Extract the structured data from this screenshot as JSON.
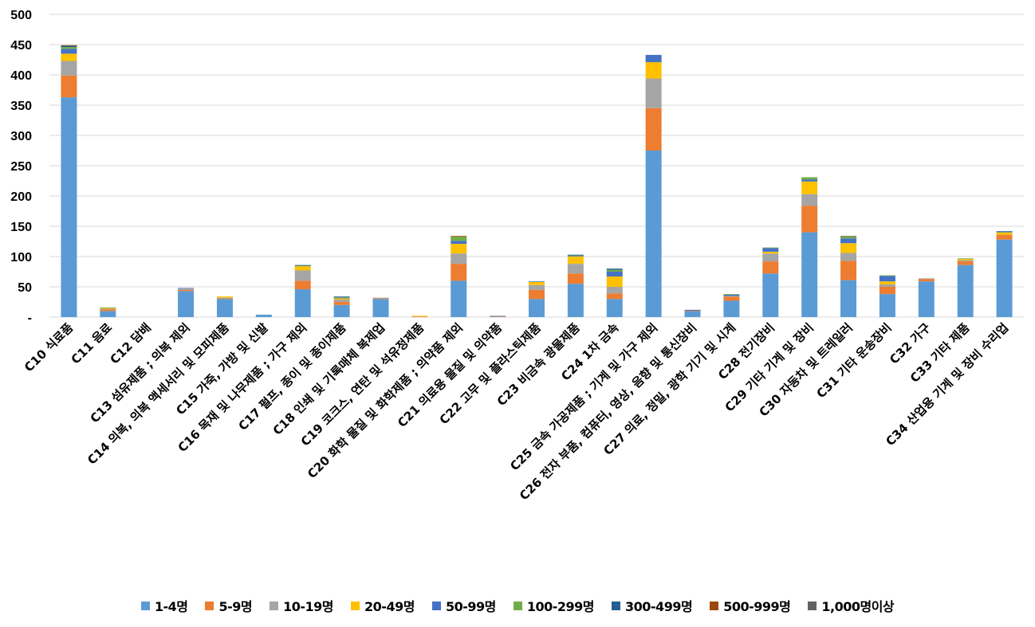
{
  "chart_data": {
    "type": "bar",
    "stacked": true,
    "title": "",
    "xlabel": "",
    "ylabel": "",
    "ylim": [
      0,
      500
    ],
    "yticks": [
      0,
      50,
      100,
      150,
      200,
      250,
      300,
      350,
      400,
      450,
      500
    ],
    "ytick_labels": [
      "-",
      "50",
      "100",
      "150",
      "200",
      "250",
      "300",
      "350",
      "400",
      "450",
      "500"
    ],
    "grid": true,
    "legend_position": "bottom",
    "categories": [
      "C10 식료품",
      "C11 음료",
      "C12 담배",
      "C13 섬유제품 ; 의복 제외",
      "C14 의복, 의복 액세서리 및 모피제품",
      "C15 가죽, 가방 및 신발",
      "C16 목재 및 나무제품 ; 가구 제외",
      "C17 펄프, 종이 및 종이제품",
      "C18 인쇄 및 기록매체 복제업",
      "C19 코크스, 연탄 및 석유정제품",
      "C20 화학 물질 및 화학제품 ; 의약품 제외",
      "C21 의료용 물질 및 의약품",
      "C22 고무 및 플라스틱제품",
      "C23 비금속 광물제품",
      "C24 1차 금속",
      "C25 금속 가공제품 ; 기계 및 가구 제외",
      "C26 전자 부품, 컴퓨터, 영상, 음향 및 통신장비",
      "C27 의료, 정밀, 광학 기기 및 시계",
      "C28 전기장비",
      "C29 기타 기계 및 장비",
      "C30 자동차 및 트레일러",
      "C31 기타 운송장비",
      "C32 가구",
      "C33 기타 제품",
      "C34 산업용 기계 및 장비 수리업"
    ],
    "series": [
      {
        "name": "1-4명",
        "color": "#5B9BD5",
        "values": [
          363,
          10,
          0,
          43,
          30,
          4,
          46,
          20,
          30,
          0,
          60,
          0,
          30,
          55,
          30,
          275,
          10,
          27,
          72,
          140,
          61,
          38,
          59,
          86,
          128
        ]
      },
      {
        "name": "5-9명",
        "color": "#ED7D31",
        "values": [
          36,
          3,
          0,
          2,
          1,
          0,
          14,
          5,
          1,
          1,
          28,
          1,
          15,
          17,
          9,
          70,
          1,
          7,
          20,
          44,
          32,
          12,
          4,
          6,
          8
        ]
      },
      {
        "name": "10-19명",
        "color": "#A5A5A5",
        "values": [
          24,
          1,
          0,
          2,
          1,
          0,
          17,
          4,
          1,
          0,
          17,
          0,
          8,
          16,
          11,
          49,
          0,
          1,
          13,
          19,
          13,
          4,
          1,
          2,
          0
        ]
      },
      {
        "name": "20-49명",
        "color": "#FFC000",
        "values": [
          12,
          1,
          0,
          0,
          2,
          0,
          7,
          2,
          0,
          1,
          16,
          0,
          5,
          12,
          17,
          27,
          0,
          0,
          3,
          21,
          16,
          5,
          0,
          2,
          4
        ]
      },
      {
        "name": "50-99명",
        "color": "#4472C4",
        "values": [
          8,
          0,
          0,
          1,
          0,
          0,
          0,
          1,
          0,
          0,
          5,
          1,
          1,
          1,
          8,
          12,
          0,
          2,
          6,
          3,
          8,
          9,
          0,
          0,
          2
        ]
      },
      {
        "name": "100-299명",
        "color": "#70AD47",
        "values": [
          3,
          1,
          0,
          0,
          0,
          0,
          1,
          1,
          0,
          0,
          7,
          0,
          0,
          1,
          3,
          0,
          0,
          1,
          1,
          4,
          3,
          1,
          0,
          1,
          0
        ]
      },
      {
        "name": "300-499명",
        "color": "#255E91",
        "values": [
          2,
          0,
          0,
          0,
          0,
          0,
          1,
          1,
          0,
          0,
          0,
          0,
          0,
          1,
          2,
          0,
          1,
          0,
          0,
          0,
          0,
          0,
          0,
          0,
          0
        ]
      },
      {
        "name": "500-999명",
        "color": "#9E480E",
        "values": [
          1,
          0,
          0,
          0,
          0,
          0,
          0,
          0,
          0,
          0,
          1,
          0,
          0,
          0,
          0,
          0,
          0,
          0,
          0,
          0,
          0,
          0,
          0,
          0,
          0
        ]
      },
      {
        "name": "1,000명이상",
        "color": "#636363",
        "values": [
          0,
          0,
          0,
          0,
          0,
          0,
          0,
          0,
          0,
          0,
          0,
          0,
          0,
          0,
          0,
          0,
          0,
          0,
          0,
          0,
          1,
          0,
          0,
          0,
          0
        ]
      }
    ]
  }
}
